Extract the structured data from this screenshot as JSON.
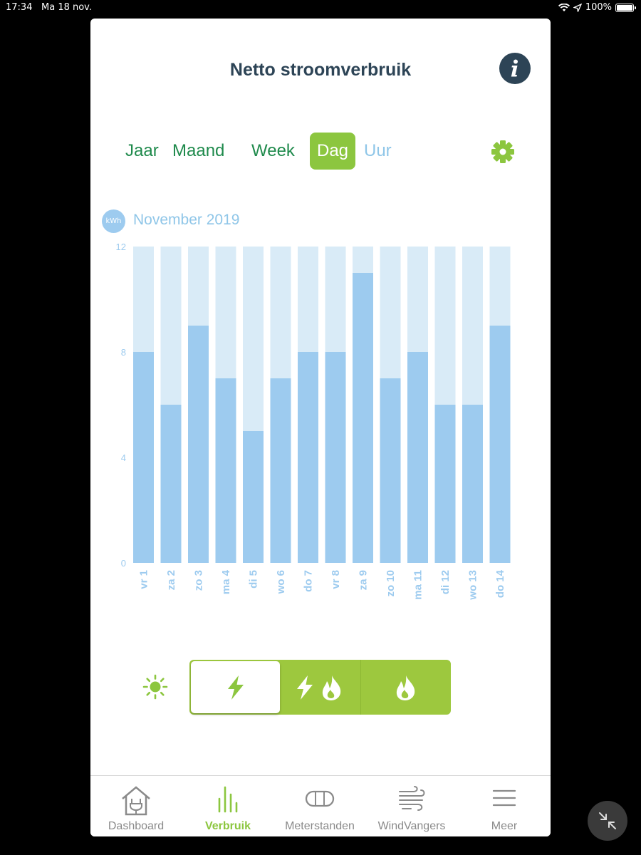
{
  "status": {
    "time": "17:34",
    "date": "Ma 18 nov.",
    "battery": "100%"
  },
  "header": {
    "title": "Netto stroomverbruik",
    "info_icon": "info-icon"
  },
  "tabs": [
    {
      "label": "Jaar",
      "state": "normal"
    },
    {
      "label": "Maand",
      "state": "normal"
    },
    {
      "label": "Week",
      "state": "normal"
    },
    {
      "label": "Dag",
      "state": "active"
    },
    {
      "label": "Uur",
      "state": "disabled"
    }
  ],
  "chart_header": {
    "unit": "kWh",
    "period": "November 2019"
  },
  "chart_data": {
    "type": "bar",
    "ylim": [
      0,
      12
    ],
    "yticks": [
      "0",
      "4",
      "8",
      "12"
    ],
    "categories": [
      "vr 1",
      "za 2",
      "zo 3",
      "ma 4",
      "di 5",
      "wo 6",
      "do 7",
      "vr 8",
      "za 9",
      "zo 10",
      "ma 11",
      "di 12",
      "wo 13",
      "do 14"
    ],
    "values": [
      8,
      6,
      9,
      7,
      5,
      7,
      8,
      8,
      11,
      7,
      8,
      6,
      6,
      9
    ],
    "colors": {
      "bar": "#9dcbef",
      "background": "#d9ebf7",
      "labels": "#9dcbef"
    }
  },
  "energy_toggle": {
    "sun_icon": "sun-icon",
    "options": [
      "electricity-icon",
      "electricity-gas-icon",
      "gas-icon"
    ],
    "selected": 0
  },
  "tabbar": [
    {
      "label": "Dashboard",
      "icon": "house-plug-icon"
    },
    {
      "label": "Verbruik",
      "icon": "bars-icon",
      "active": true
    },
    {
      "label": "Meterstanden",
      "icon": "meter-icon"
    },
    {
      "label": "WindVangers",
      "icon": "wind-icon"
    },
    {
      "label": "Meer",
      "icon": "menu-icon"
    }
  ],
  "colors": {
    "accent": "#8cc63f",
    "title": "#2d4456",
    "tab_text": "#1f8a4c"
  }
}
